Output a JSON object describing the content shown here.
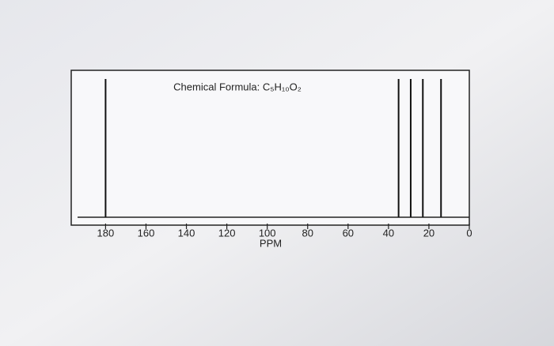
{
  "chart_data": {
    "type": "stem",
    "title": "Chemical Formula: C₅H₁₀O₂",
    "x_label": "PPM",
    "x": [
      180,
      35,
      29,
      23,
      14
    ],
    "color": "#111111",
    "xlim": [
      197,
      0
    ],
    "xticks": [
      180,
      160,
      140,
      120,
      100,
      80,
      60,
      40,
      20,
      0
    ]
  }
}
